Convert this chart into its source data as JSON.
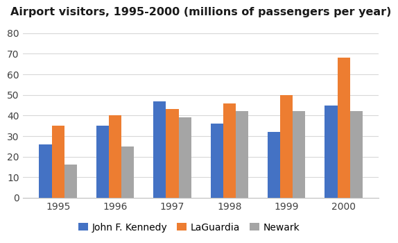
{
  "title": "Airport visitors, 1995-2000 (millions of passengers per year)",
  "years": [
    1995,
    1996,
    1997,
    1998,
    1999,
    2000
  ],
  "series": {
    "John F. Kennedy": [
      26,
      35,
      47,
      36,
      32,
      45
    ],
    "LaGuardia": [
      35,
      40,
      43,
      46,
      50,
      68
    ],
    "Newark": [
      16,
      25,
      39,
      42,
      42,
      42
    ]
  },
  "colors": {
    "John F. Kennedy": "#4472C4",
    "LaGuardia": "#ED7D31",
    "Newark": "#A5A5A5"
  },
  "ylim": [
    0,
    85
  ],
  "yticks": [
    0,
    10,
    20,
    30,
    40,
    50,
    60,
    70,
    80
  ],
  "bar_width": 0.22,
  "title_fontsize": 11.5,
  "tick_fontsize": 10,
  "legend_fontsize": 10
}
